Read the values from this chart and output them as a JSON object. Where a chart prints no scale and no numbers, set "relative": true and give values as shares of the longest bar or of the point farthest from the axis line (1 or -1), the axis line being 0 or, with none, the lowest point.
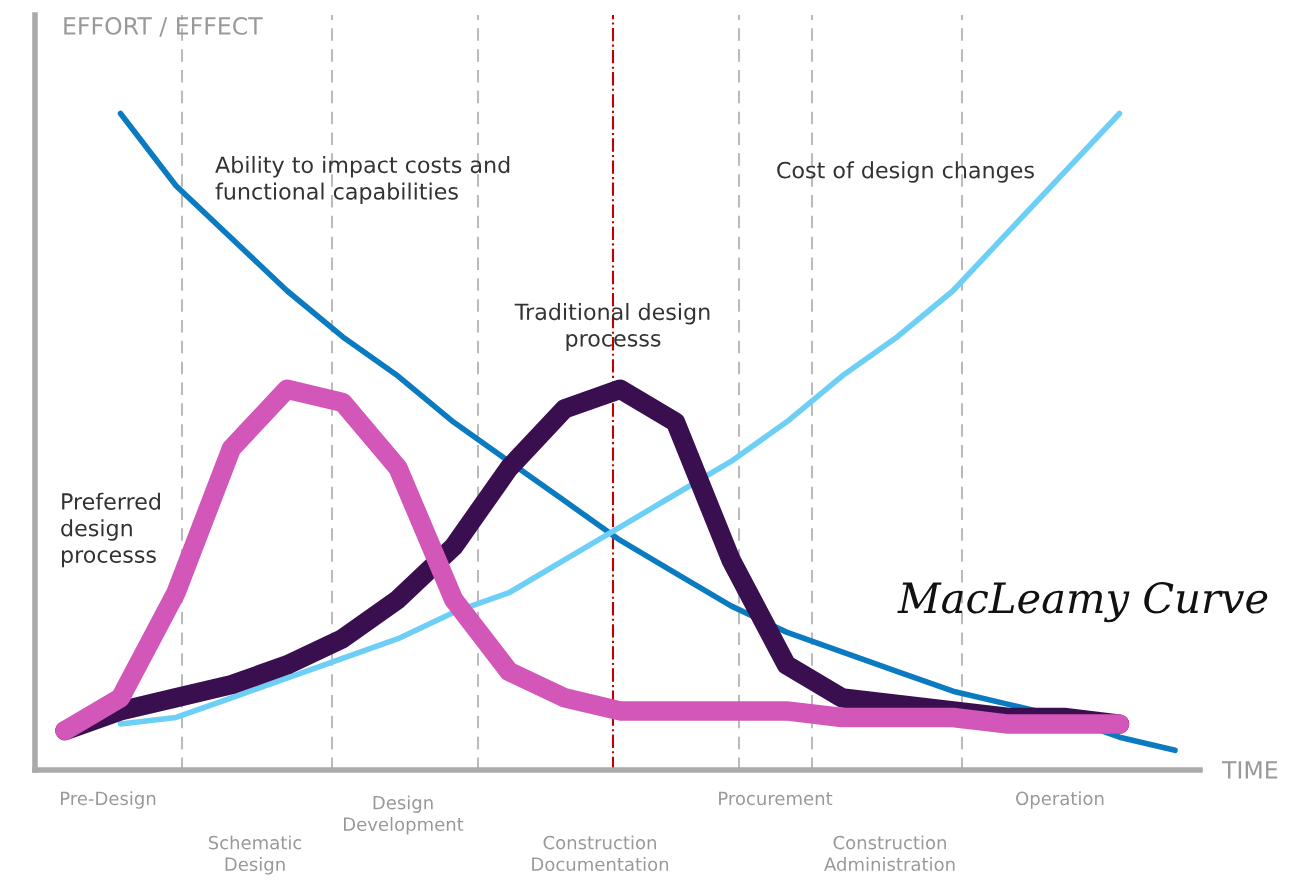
{
  "chart_data": {
    "type": "line",
    "relative": true,
    "ylabel": "EFFORT / EFFECT",
    "xlabel": "TIME",
    "categories": [
      null,
      null,
      null,
      null,
      null,
      null,
      null,
      null,
      null,
      null,
      null,
      null,
      null,
      null,
      null,
      null,
      null,
      null,
      null,
      null,
      null
    ],
    "series": [
      {
        "color": "#0a7bc1",
        "values": [
          null,
          1.0,
          0.89,
          0.81,
          0.73,
          0.66,
          0.6,
          0.53,
          0.47,
          0.41,
          0.35,
          0.3,
          0.25,
          0.21,
          0.18,
          0.15,
          0.12,
          0.1,
          0.08,
          0.05,
          0.03
        ]
      },
      {
        "color": "#6dcff6",
        "values": [
          null,
          0.07,
          0.08,
          0.11,
          0.14,
          0.17,
          0.2,
          0.24,
          0.27,
          0.32,
          0.37,
          0.42,
          0.47,
          0.53,
          0.6,
          0.66,
          0.73,
          0.82,
          0.91,
          1.0,
          null
        ]
      },
      {
        "color": "#3a0f4f",
        "values": [
          0.06,
          0.09,
          0.11,
          0.13,
          0.16,
          0.2,
          0.26,
          0.34,
          0.46,
          0.55,
          0.58,
          0.53,
          0.32,
          0.16,
          0.11,
          0.1,
          0.09,
          0.08,
          0.08,
          0.07,
          null
        ]
      },
      {
        "color": "#d257b8",
        "values": [
          0.06,
          0.11,
          0.27,
          0.49,
          0.58,
          0.56,
          0.46,
          0.26,
          0.15,
          0.11,
          0.09,
          0.09,
          0.09,
          0.09,
          0.08,
          0.08,
          0.08,
          0.07,
          0.07,
          0.07,
          null
        ]
      }
    ],
    "annotations": [
      "Ability to impact costs and\nfunctional capabilities",
      "Cost of design changes",
      "Traditional design\nprocesss",
      "Preferred\ndesign\nprocesss",
      "MacLeamy Curve",
      "Pre-Design",
      "Schematic\nDesign",
      "Design\nDevelopment",
      "Construction\nDocumentation",
      "Procurement",
      "Construction\nAdministration",
      "Operation"
    ]
  }
}
